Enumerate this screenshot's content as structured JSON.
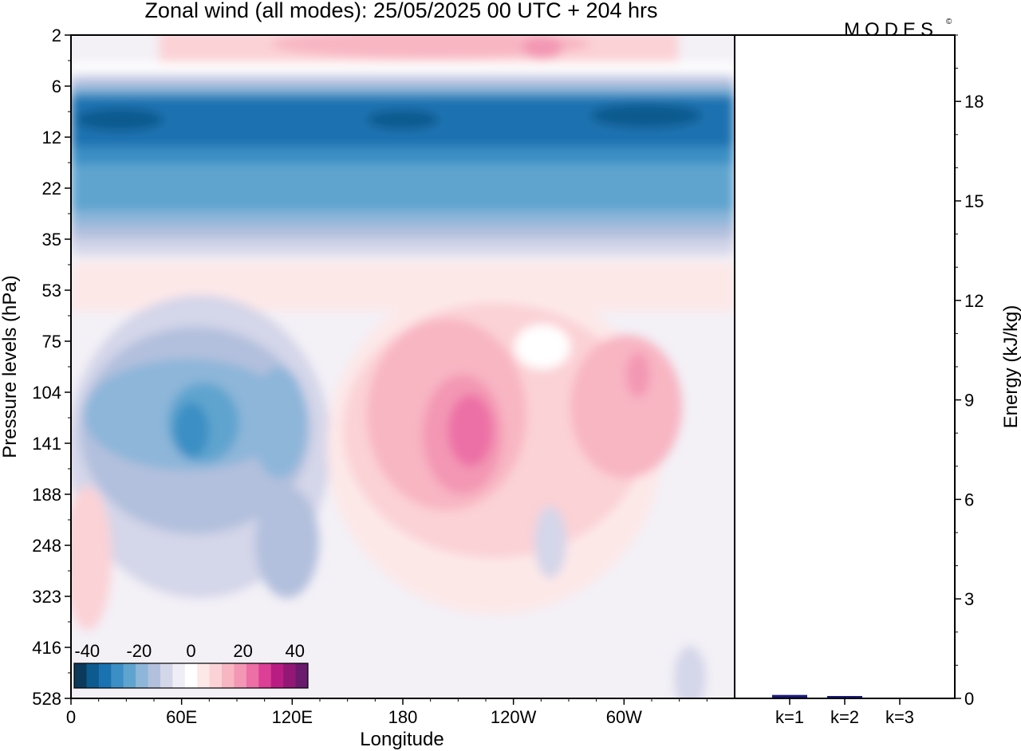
{
  "title": "Zonal wind (all modes):  25/05/2025  00 UTC  + 204 hrs",
  "brand": "MODES",
  "brand_mark": "©",
  "chart_data": [
    {
      "type": "heatmap",
      "title": "Zonal wind (all modes):  25/05/2025  00 UTC  + 204 hrs",
      "xlabel": "Longitude",
      "ylabel": "Pressure levels (hPa)",
      "x_ticks": [
        "0",
        "60E",
        "120E",
        "180",
        "120W",
        "60W"
      ],
      "y_ticks": [
        "2",
        "6",
        "12",
        "22",
        "35",
        "53",
        "75",
        "104",
        "141",
        "188",
        "248",
        "323",
        "416",
        "528"
      ],
      "y_scale": "model levels (pressure increasing downward)",
      "colorbar": {
        "ticks": [
          "-40",
          "-20",
          "0",
          "20",
          "40"
        ],
        "range": [
          -45,
          45
        ],
        "step": 5,
        "colors": [
          "#0b3a5c",
          "#0d5a8e",
          "#1a72b0",
          "#3b8fc4",
          "#5fa4cf",
          "#8db6d9",
          "#b2c0dd",
          "#d4d6e9",
          "#efeef6",
          "#ffffff",
          "#fde8e8",
          "#fbd2d6",
          "#f8b5c2",
          "#f397b4",
          "#ec6fa5",
          "#dc3f96",
          "#b91d84",
          "#931876",
          "#6a1b6e"
        ]
      },
      "features": [
        {
          "lon_range": [
            0,
            360
          ],
          "level_range": [
            6,
            22
          ],
          "value": -30
        },
        {
          "lon_range": [
            10,
            130
          ],
          "level_range": [
            90,
            200
          ],
          "value": -20
        },
        {
          "lon_range": [
            190,
            225
          ],
          "level_range": [
            110,
            170
          ],
          "value": 30
        },
        {
          "lon_range": [
            275,
            295
          ],
          "level_range": [
            95,
            120
          ],
          "value": 25
        },
        {
          "lon_range": [
            80,
            350
          ],
          "level_range": [
            2,
            3
          ],
          "value": 15
        }
      ]
    },
    {
      "type": "bar",
      "categories": [
        "k=1",
        "k=2",
        "k=3"
      ],
      "values": [
        0.08,
        0.04,
        0.0
      ],
      "ylabel": "Energy (kJ/kg)",
      "ylim": [
        0,
        20
      ],
      "y_ticks": [
        "0",
        "3",
        "6",
        "9",
        "12",
        "15",
        "18"
      ],
      "bar_colors": [
        "#1a1a7a",
        "#1a1a7a",
        "#1a1a7a"
      ]
    }
  ]
}
